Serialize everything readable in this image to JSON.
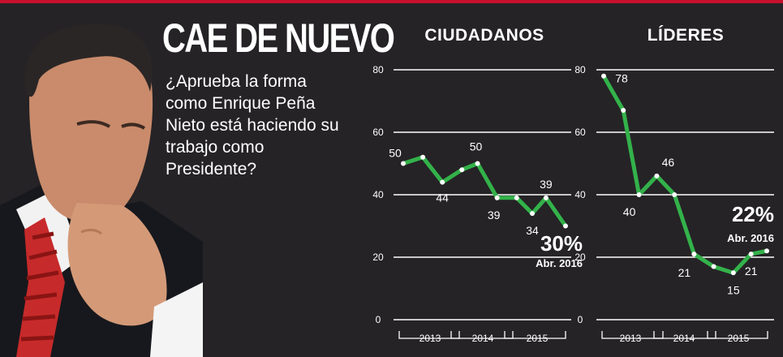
{
  "header": {
    "title": "CAE DE NUEVO",
    "question": "¿Aprueba la forma como Enrique Peña Nieto está haciendo su trabajo como Presidente?"
  },
  "colors": {
    "line": "#33b24a",
    "background": "#252326",
    "accent": "#c8102e"
  },
  "chart_data": [
    {
      "type": "line",
      "title": "CIUDADANOS",
      "ylim": [
        0,
        80
      ],
      "yticks": [
        "0",
        "20",
        "40",
        "60",
        "80"
      ],
      "xticks": [
        "2013",
        "2014",
        "2015"
      ],
      "x_range": [
        0,
        8.3
      ],
      "series": [
        {
          "values": [
            {
              "x": 0,
              "y": 50,
              "label": "50"
            },
            {
              "x": 1,
              "y": 52
            },
            {
              "x": 2,
              "y": 44,
              "label": "44"
            },
            {
              "x": 3,
              "y": 48
            },
            {
              "x": 3.8,
              "y": 50,
              "label": "50"
            },
            {
              "x": 4.8,
              "y": 39,
              "label": "39"
            },
            {
              "x": 5.8,
              "y": 39
            },
            {
              "x": 6.6,
              "y": 34,
              "label": "34"
            },
            {
              "x": 7.3,
              "y": 39,
              "label": "39"
            },
            {
              "x": 8.3,
              "y": 30
            }
          ]
        }
      ],
      "annotation": {
        "value": "30%",
        "date": "Abr. 2016"
      }
    },
    {
      "type": "line",
      "title": "LÍDERES",
      "ylim": [
        0,
        80
      ],
      "yticks": [
        "0",
        "20",
        "40",
        "60",
        "80"
      ],
      "xticks": [
        "2013",
        "2014",
        "2015"
      ],
      "x_range": [
        0,
        8.3
      ],
      "series": [
        {
          "values": [
            {
              "x": 0,
              "y": 78,
              "label": "78"
            },
            {
              "x": 1,
              "y": 67
            },
            {
              "x": 1.8,
              "y": 40,
              "label": "40"
            },
            {
              "x": 2.7,
              "y": 46,
              "label": "46"
            },
            {
              "x": 3.6,
              "y": 40
            },
            {
              "x": 4.6,
              "y": 21,
              "label": "21"
            },
            {
              "x": 5.6,
              "y": 17
            },
            {
              "x": 6.6,
              "y": 15,
              "label": "15"
            },
            {
              "x": 7.5,
              "y": 21,
              "label": "21"
            },
            {
              "x": 8.3,
              "y": 22
            }
          ]
        }
      ],
      "annotation": {
        "value": "22%",
        "date": "Abr. 2016"
      }
    }
  ]
}
